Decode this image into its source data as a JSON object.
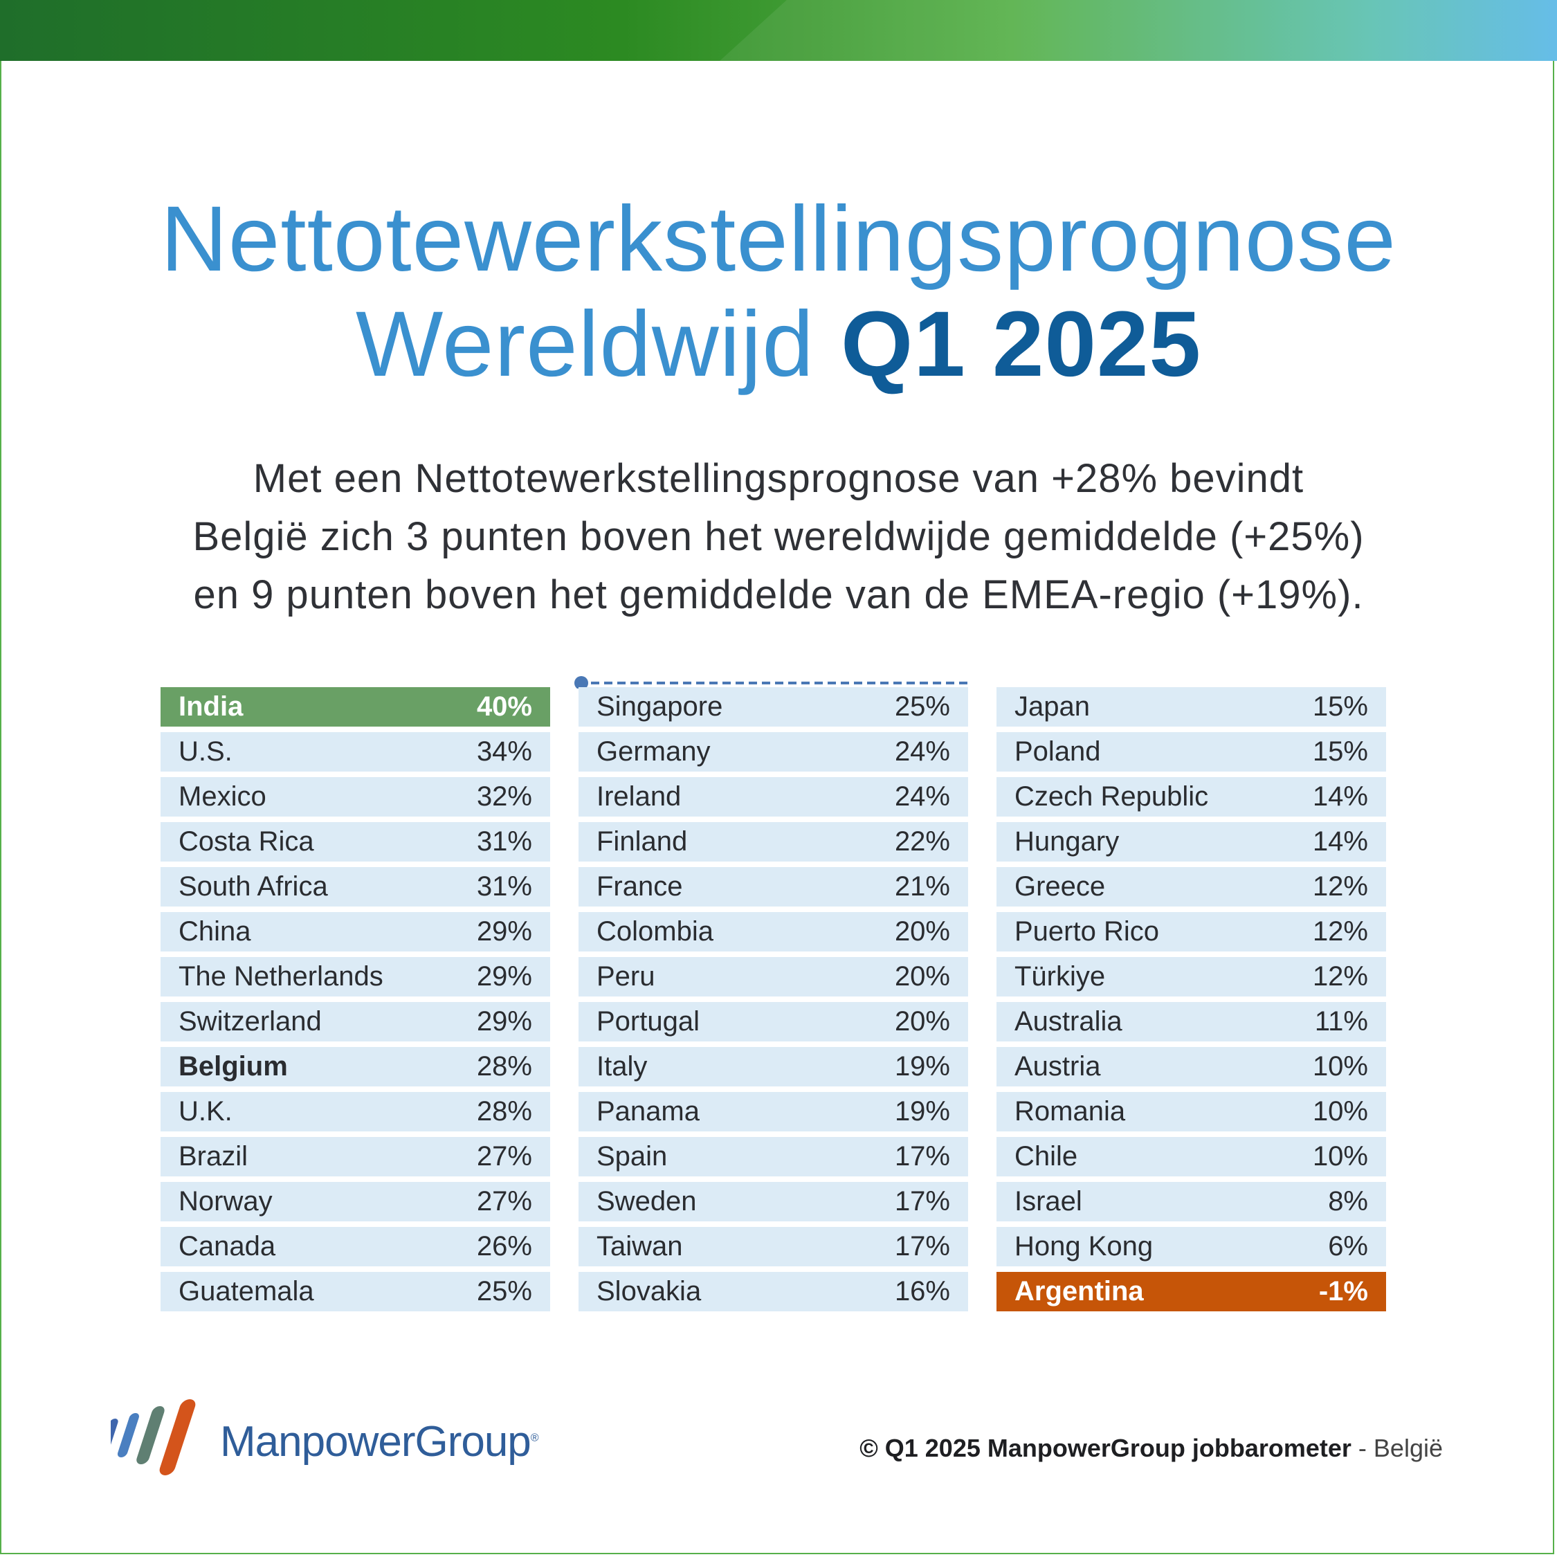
{
  "title": {
    "line1": "Nettotewerkstellingsprognose",
    "line2_regular": "Wereldwijd",
    "line2_bold": "Q1 2025"
  },
  "subtitle": {
    "line1": "Met een Nettotewerkstellingsprognose van +28% bevindt",
    "line2": "België zich 3 punten boven het wereldwijde gemiddelde (+25%)",
    "line3": "en 9 punten boven het gemiddelde van de EMEA-regio (+19%)."
  },
  "chart_data": {
    "type": "table",
    "columns": [
      [
        {
          "country": "India",
          "value": "40%"
        },
        {
          "country": "U.S.",
          "value": "34%"
        },
        {
          "country": "Mexico",
          "value": "32%"
        },
        {
          "country": "Costa Rica",
          "value": "31%"
        },
        {
          "country": "South Africa",
          "value": "31%"
        },
        {
          "country": "China",
          "value": "29%"
        },
        {
          "country": "The Netherlands",
          "value": "29%"
        },
        {
          "country": "Switzerland",
          "value": "29%"
        },
        {
          "country": "Belgium",
          "value": "28%"
        },
        {
          "country": "U.K.",
          "value": "28%"
        },
        {
          "country": "Brazil",
          "value": "27%"
        },
        {
          "country": "Norway",
          "value": "27%"
        },
        {
          "country": "Canada",
          "value": "26%"
        },
        {
          "country": "Guatemala",
          "value": "25%"
        }
      ],
      [
        {
          "country": "Singapore",
          "value": "25%"
        },
        {
          "country": "Germany",
          "value": "24%"
        },
        {
          "country": "Ireland",
          "value": "24%"
        },
        {
          "country": "Finland",
          "value": "22%"
        },
        {
          "country": "France",
          "value": "21%"
        },
        {
          "country": "Colombia",
          "value": "20%"
        },
        {
          "country": "Peru",
          "value": "20%"
        },
        {
          "country": "Portugal",
          "value": "20%"
        },
        {
          "country": "Italy",
          "value": "19%"
        },
        {
          "country": "Panama",
          "value": "19%"
        },
        {
          "country": "Spain",
          "value": "17%"
        },
        {
          "country": "Sweden",
          "value": "17%"
        },
        {
          "country": "Taiwan",
          "value": "17%"
        },
        {
          "country": "Slovakia",
          "value": "16%"
        }
      ],
      [
        {
          "country": "Japan",
          "value": "15%"
        },
        {
          "country": "Poland",
          "value": "15%"
        },
        {
          "country": "Czech Republic",
          "value": "14%"
        },
        {
          "country": "Hungary",
          "value": "14%"
        },
        {
          "country": "Greece",
          "value": "12%"
        },
        {
          "country": "Puerto Rico",
          "value": "12%"
        },
        {
          "country": "Türkiye",
          "value": "12%"
        },
        {
          "country": "Australia",
          "value": "11%"
        },
        {
          "country": "Austria",
          "value": "10%"
        },
        {
          "country": "Romania",
          "value": "10%"
        },
        {
          "country": "Chile",
          "value": "10%"
        },
        {
          "country": "Israel",
          "value": "8%"
        },
        {
          "country": "Hong Kong",
          "value": "6%"
        },
        {
          "country": "Argentina",
          "value": "-1%"
        }
      ]
    ],
    "highlights": {
      "top": "India",
      "bottom": "Argentina",
      "bold": "Belgium"
    }
  },
  "colors": {
    "title": "#3a90cf",
    "title_strong": "#0f5c98",
    "row_bg": "#dcebf6",
    "top_highlight": "#69a065",
    "bottom_highlight": "#c65508",
    "logo_blue": "#2f5d99"
  },
  "logo": {
    "name": "ManpowerGroup",
    "mark": "®"
  },
  "footer": {
    "copyright_bold": "© Q1 2025 ManpowerGroup jobbarometer",
    "separator": " - ",
    "country": "België"
  }
}
